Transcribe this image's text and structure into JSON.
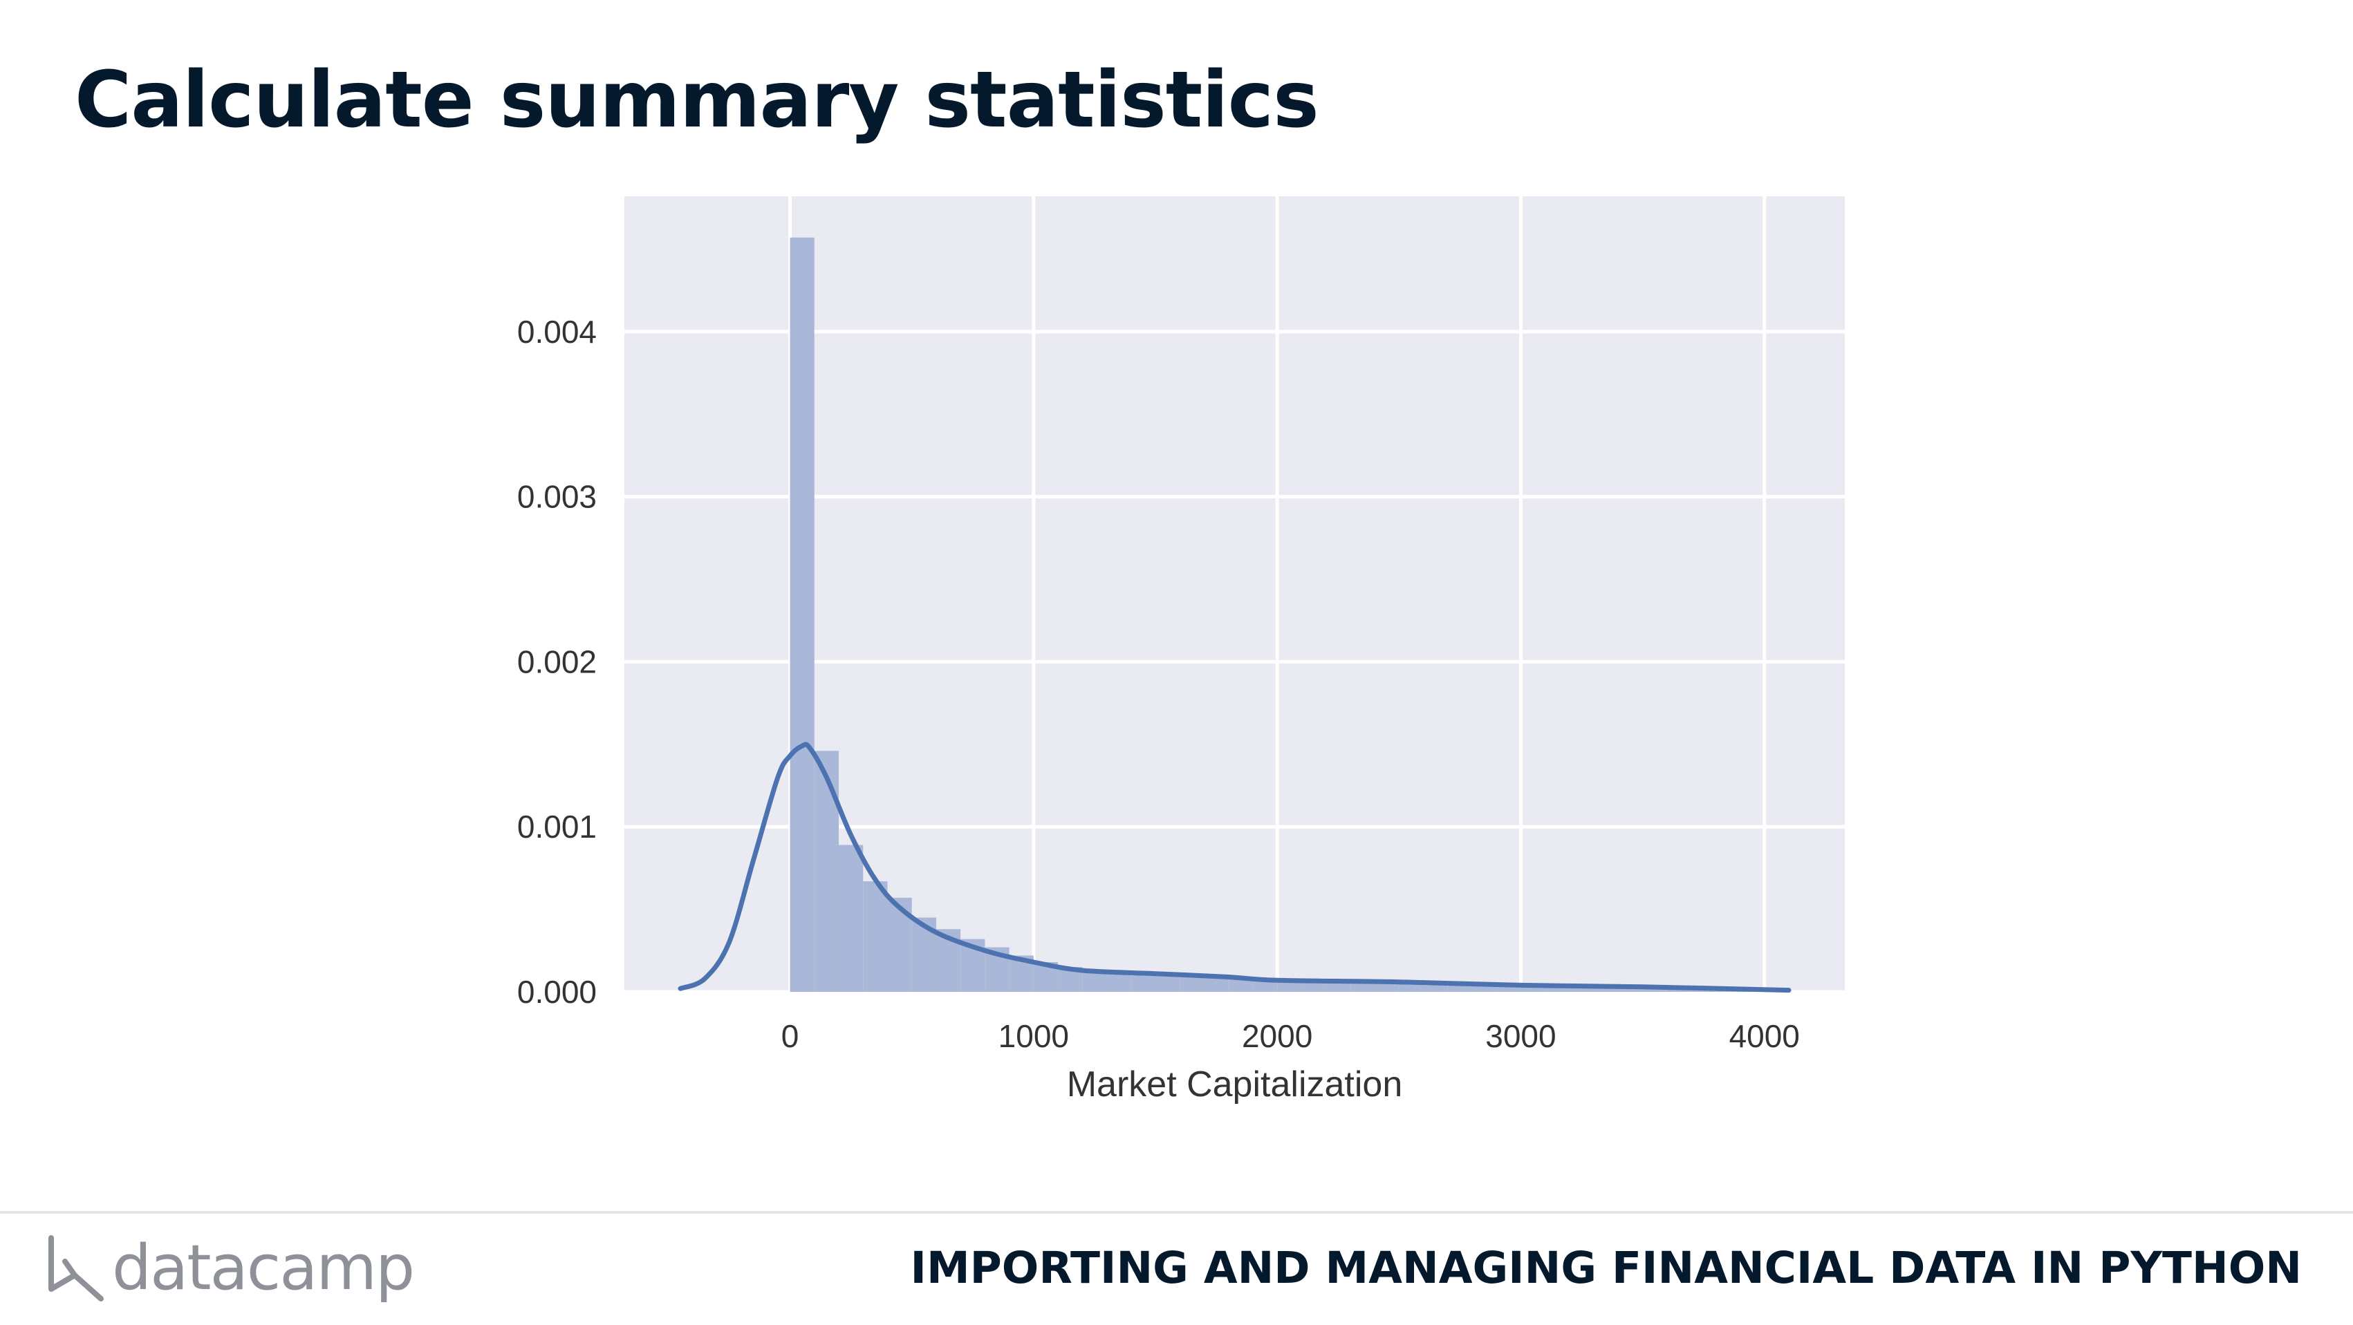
{
  "slide": {
    "title": "Calculate summary statistics"
  },
  "footer": {
    "brand": "datacamp",
    "brand_icon": "datacamp-logo-icon",
    "course_title": "IMPORTING AND MANAGING FINANCIAL DATA IN PYTHON"
  },
  "colors": {
    "title": "#05192d",
    "plot_background": "#eaeaf2",
    "grid": "#ffffff",
    "bars": "#a9b8d8",
    "kde_line": "#4c72b0",
    "tick_text": "#333333",
    "brand_text": "#8f9199",
    "footer_rule": "#e4e4e0"
  },
  "chart_data": {
    "type": "bar",
    "style": "histogram with KDE line",
    "title": "",
    "xlabel": "Market Capitalization",
    "ylabel": "",
    "xlim": [
      -680,
      4330
    ],
    "ylim": [
      0,
      0.00482
    ],
    "xticks": [
      0,
      1000,
      2000,
      3000,
      4000
    ],
    "yticks": [
      0.0,
      0.001,
      0.002,
      0.003,
      0.004
    ],
    "xtick_labels": [
      "0",
      "1000",
      "2000",
      "3000",
      "4000"
    ],
    "ytick_labels": [
      "0.000",
      "0.001",
      "0.002",
      "0.003",
      "0.004"
    ],
    "grid": true,
    "legend": "none",
    "histogram": {
      "bin_width": 100,
      "bin_starts": [
        0,
        100,
        200,
        300,
        400,
        500,
        600,
        700,
        800,
        900,
        1000,
        1100,
        1200,
        1300,
        1400,
        1500,
        1600,
        1700,
        1800,
        1900,
        2000,
        2100,
        2200,
        2300,
        2400,
        2500,
        2600,
        2700,
        2800,
        2900,
        3000,
        3100,
        3200,
        3300,
        3400,
        3500,
        3600,
        3700,
        3800,
        3900,
        4000
      ],
      "density": [
        0.00457,
        0.00146,
        0.00089,
        0.00067,
        0.00057,
        0.00045,
        0.00038,
        0.00032,
        0.00027,
        0.00022,
        0.00018,
        0.00015,
        0.00013,
        0.00012,
        0.00011,
        0.0001,
        9e-05,
        9e-05,
        8e-05,
        7e-05,
        7e-05,
        6e-05,
        6e-05,
        5e-05,
        5e-05,
        5e-05,
        4e-05,
        4e-05,
        4e-05,
        3e-05,
        3e-05,
        3e-05,
        3e-05,
        3e-05,
        2e-05,
        2e-05,
        2e-05,
        2e-05,
        2e-05,
        1e-05,
        1e-05
      ]
    },
    "kde": {
      "x": [
        -450,
        -350,
        -250,
        -150,
        -50,
        0,
        50,
        80,
        150,
        250,
        350,
        450,
        600,
        800,
        1000,
        1200,
        1500,
        1800,
        2000,
        2500,
        3000,
        3500,
        4100
      ],
      "y": [
        2e-05,
        8e-05,
        0.0003,
        0.0008,
        0.0013,
        0.00143,
        0.00149,
        0.00148,
        0.0013,
        0.00095,
        0.00068,
        0.00051,
        0.00036,
        0.00025,
        0.00018,
        0.00013,
        0.00011,
        9e-05,
        7e-05,
        6e-05,
        4e-05,
        3e-05,
        1e-05
      ]
    }
  }
}
